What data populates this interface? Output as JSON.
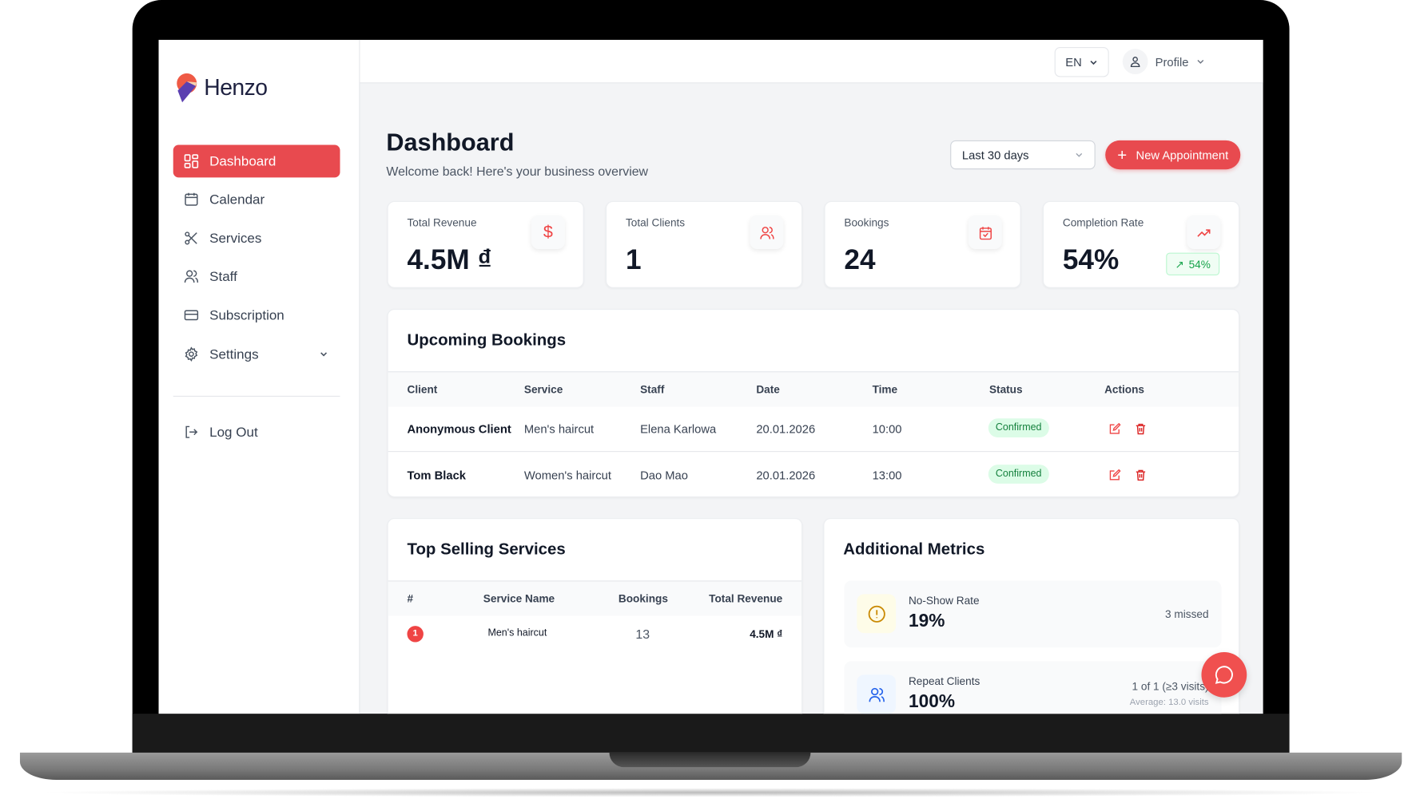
{
  "brand": {
    "name": "Henzo",
    "accent": "#e84a4f"
  },
  "sidebar": {
    "items": [
      {
        "label": "Dashboard",
        "icon": "grid-icon",
        "active": true
      },
      {
        "label": "Calendar",
        "icon": "calendar-icon"
      },
      {
        "label": "Services",
        "icon": "scissors-icon"
      },
      {
        "label": "Staff",
        "icon": "users-icon"
      },
      {
        "label": "Subscription",
        "icon": "credit-card-icon"
      },
      {
        "label": "Settings",
        "icon": "gear-icon"
      }
    ],
    "logout": "Log Out"
  },
  "header": {
    "language": "EN",
    "profile": "Profile"
  },
  "page": {
    "title": "Dashboard",
    "subtitle": "Welcome back! Here's your business overview",
    "range": "Last 30 days",
    "new_button": "New Appointment"
  },
  "stats": [
    {
      "label": "Total Revenue",
      "value": "4.5M ₫",
      "icon": "dollar-icon"
    },
    {
      "label": "Total Clients",
      "value": "1",
      "icon": "users-icon"
    },
    {
      "label": "Bookings",
      "value": "24",
      "icon": "calendar-check-icon"
    },
    {
      "label": "Completion Rate",
      "value": "54%",
      "icon": "trending-up-icon",
      "trend": "54%"
    }
  ],
  "bookings": {
    "title": "Upcoming Bookings",
    "columns": [
      "Client",
      "Service",
      "Staff",
      "Date",
      "Time",
      "Status",
      "Actions"
    ],
    "rows": [
      {
        "client": "Anonymous Client",
        "service": "Men's haircut",
        "staff": "Elena Karlowa",
        "date": "20.01.2026",
        "time": "10:00",
        "status": "Confirmed"
      },
      {
        "client": "Tom Black",
        "service": "Women's haircut",
        "staff": "Dao Mao",
        "date": "20.01.2026",
        "time": "13:00",
        "status": "Confirmed"
      }
    ]
  },
  "top_services": {
    "title": "Top Selling Services",
    "columns": [
      "#",
      "Service Name",
      "Bookings",
      "Total Revenue"
    ],
    "rows": [
      {
        "rank": "1",
        "name": "Men's haircut",
        "bookings": "13",
        "revenue": "4.5M ₫"
      }
    ]
  },
  "metrics": {
    "title": "Additional Metrics",
    "items": [
      {
        "label": "No-Show Rate",
        "value": "19%",
        "right": "3 missed"
      },
      {
        "label": "Repeat Clients",
        "value": "100%",
        "right": "1 of 1 (≥3 visits)",
        "sub": "Average: 13.0 visits"
      }
    ]
  }
}
